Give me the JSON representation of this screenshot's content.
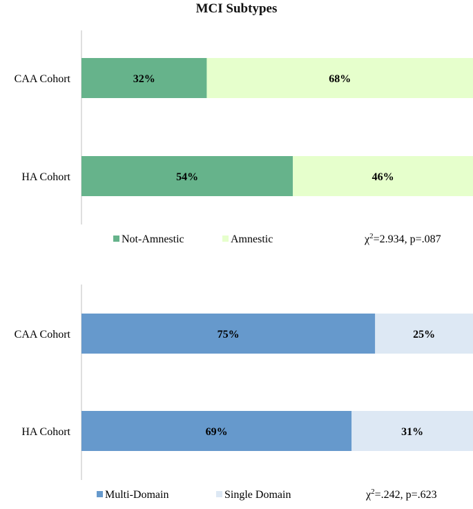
{
  "title": "MCI Subtypes",
  "chart_data": [
    {
      "type": "bar",
      "stacked": true,
      "orientation": "horizontal",
      "categories": [
        "CAA Cohort",
        "HA Cohort"
      ],
      "series": [
        {
          "name": "Not-Amnestic",
          "values": [
            32,
            54
          ],
          "labels": [
            "32%",
            "54%"
          ],
          "color": "#66b38b"
        },
        {
          "name": "Amnestic",
          "values": [
            68,
            46
          ],
          "labels": [
            "68%",
            "46%"
          ],
          "color": "#e6ffcc"
        }
      ],
      "xlim": [
        0,
        100
      ],
      "legend_position": "bottom",
      "annotation": {
        "prefix": "χ",
        "sup": "2",
        "suffix": "=2.934, p=.087"
      }
    },
    {
      "type": "bar",
      "stacked": true,
      "orientation": "horizontal",
      "categories": [
        "CAA Cohort",
        "HA Cohort"
      ],
      "series": [
        {
          "name": "Multi-Domain",
          "values": [
            75,
            69
          ],
          "labels": [
            "75%",
            "69%"
          ],
          "color": "#6699cc"
        },
        {
          "name": "Single Domain",
          "values": [
            25,
            31
          ],
          "labels": [
            "25%",
            "31%"
          ],
          "color": "#dde8f4"
        }
      ],
      "xlim": [
        0,
        100
      ],
      "legend_position": "bottom",
      "annotation": {
        "prefix": "χ",
        "sup": "2",
        "suffix": "=.242, p=.623"
      }
    }
  ]
}
